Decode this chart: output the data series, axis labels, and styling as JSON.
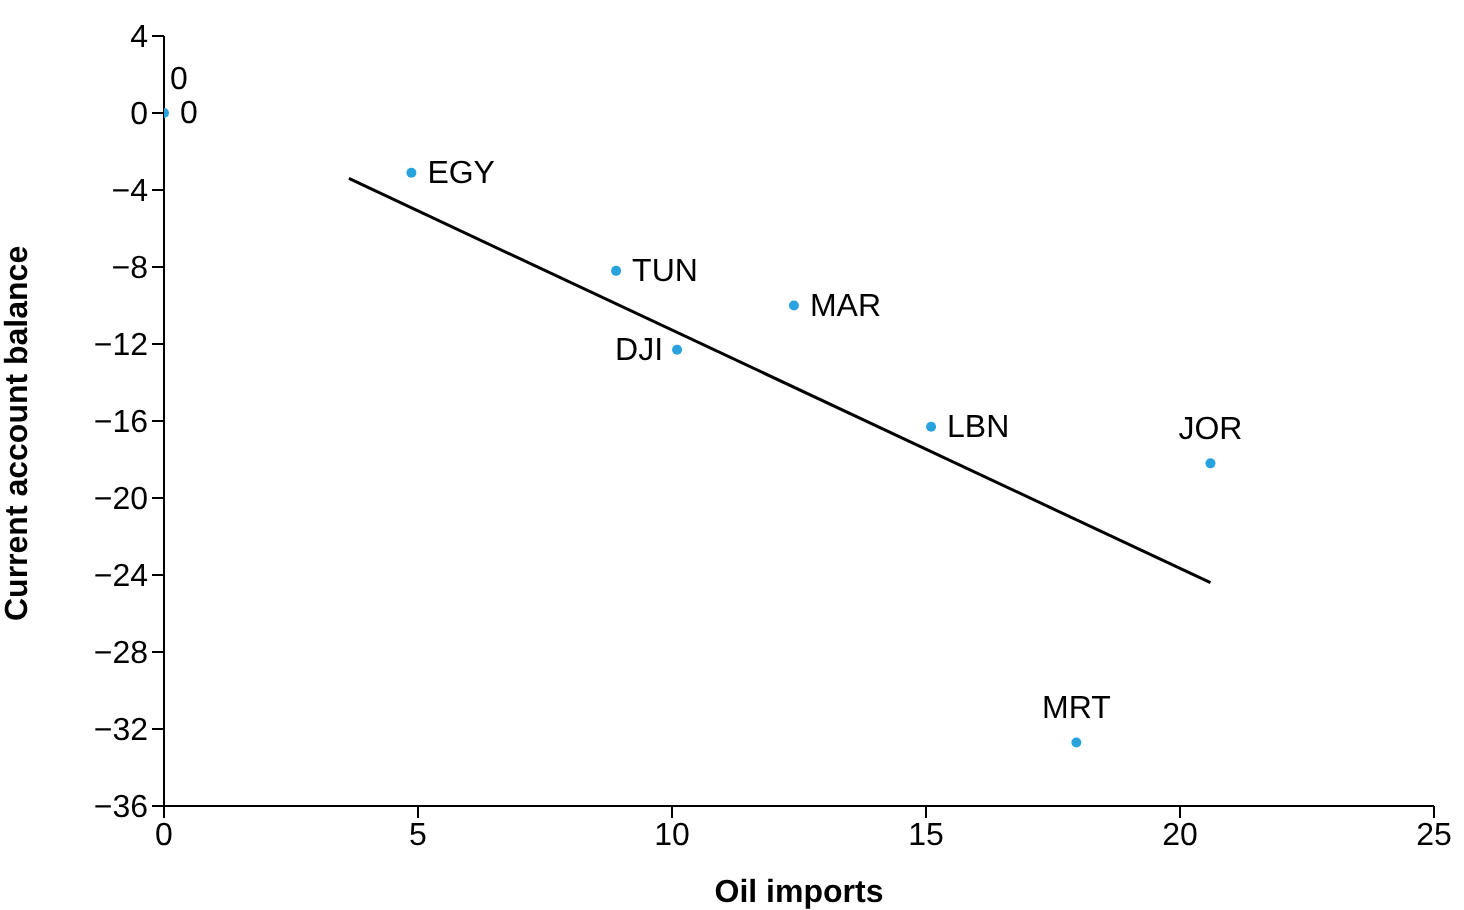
{
  "chart_data": {
    "type": "scatter",
    "xlabel": "Oil imports",
    "ylabel": "Current account balance",
    "xlim": [
      0,
      25
    ],
    "xticks": [
      0,
      5,
      10,
      15,
      20,
      25
    ],
    "ylim": [
      -36,
      4
    ],
    "yticks": [
      4,
      0,
      {
        "value": -4,
        "label": "−4"
      },
      {
        "value": -8,
        "label": "−8"
      },
      {
        "value": -12,
        "label": "−12"
      },
      {
        "value": -16,
        "label": "−16"
      },
      {
        "value": -20,
        "label": "−20"
      },
      {
        "value": -24,
        "label": "−24"
      },
      {
        "value": -28,
        "label": "−28"
      },
      {
        "value": -32,
        "label": "−32"
      },
      {
        "value": -36,
        "label": "−36"
      }
    ],
    "grid": false,
    "legend": false,
    "series": [
      {
        "marker": "circle",
        "color": "#29a3dd",
        "x": [
          0,
          4.87,
          8.9,
          12.4,
          10.1,
          15.1,
          20.6,
          17.96
        ],
        "values": [
          0,
          -3.1,
          -8.2,
          -10.0,
          -12.3,
          -16.3,
          -18.2,
          -32.7
        ]
      },
      {
        "type": "line",
        "marker": "none",
        "color": "#000000",
        "x": [
          3.64,
          20.6
        ],
        "values": [
          -3.4,
          -24.4
        ]
      }
    ],
    "annotations": [
      {
        "text": "0",
        "x": 0,
        "y": 0
      },
      {
        "text": "0",
        "x": 0,
        "y": 0
      },
      {
        "text": "EGY",
        "x": 4.87,
        "y": -3.1
      },
      {
        "text": "TUN",
        "x": 8.9,
        "y": -8.2
      },
      {
        "text": "MAR",
        "x": 12.4,
        "y": -10.0
      },
      {
        "text": "DJI",
        "x": 10.1,
        "y": -12.3
      },
      {
        "text": "LBN",
        "x": 15.1,
        "y": -16.3
      },
      {
        "text": "JOR",
        "x": 20.6,
        "y": -18.2
      },
      {
        "text": "MRT",
        "x": 17.96,
        "y": -32.7
      }
    ]
  }
}
